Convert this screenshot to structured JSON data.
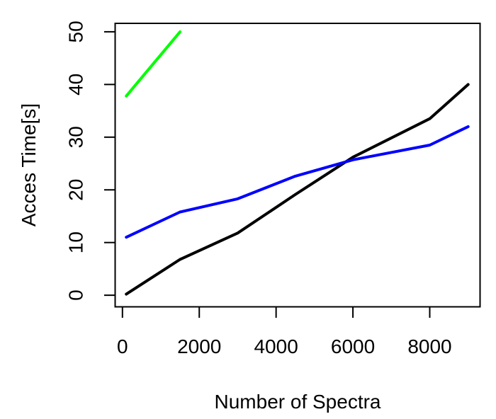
{
  "figure": {
    "background": "#FFFFFF"
  },
  "chart_data": {
    "type": "line",
    "title": "",
    "xlabel": "Number of Spectra",
    "ylabel": "Acces Time[s]",
    "x_ticks": [
      0,
      2000,
      4000,
      6000,
      8000
    ],
    "y_ticks": [
      0,
      10,
      20,
      30,
      40,
      50
    ],
    "xlim": [
      -190,
      9310
    ],
    "ylim": [
      -2.2,
      51.6
    ],
    "grid": false,
    "legend": "none",
    "box": true,
    "axis_color": "#000000",
    "series": [
      {
        "name": "black-line",
        "color": "#000000",
        "points": [
          [
            100,
            0.2
          ],
          [
            1500,
            6.8
          ],
          [
            3000,
            11.8
          ],
          [
            4500,
            19.1
          ],
          [
            6000,
            26.2
          ],
          [
            8000,
            33.5
          ],
          [
            9000,
            40
          ]
        ]
      },
      {
        "name": "blue-line",
        "color": "#0000FF",
        "points": [
          [
            100,
            11.0
          ],
          [
            1500,
            15.8
          ],
          [
            3000,
            18.3
          ],
          [
            4500,
            22.6
          ],
          [
            6000,
            25.7
          ],
          [
            8000,
            28.5
          ],
          [
            9000,
            32.0
          ]
        ]
      },
      {
        "name": "green-line",
        "color": "#00FF00",
        "points": [
          [
            100,
            37.8
          ],
          [
            500,
            41.3
          ],
          [
            1500,
            50.0
          ]
        ]
      }
    ]
  }
}
